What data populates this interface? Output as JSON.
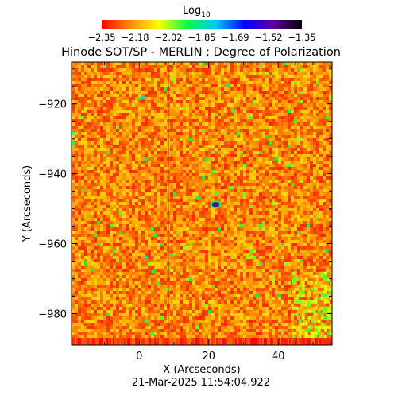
{
  "chart_data": {
    "type": "heatmap",
    "title": "Hinode SOT/SP - MERLIN : Degree of Polarization",
    "colorbar": {
      "label": "Log",
      "label_subscript": "10",
      "ticks": [
        "-2.35",
        "-2.18",
        "-2.02",
        "-1.85",
        "-1.69",
        "-1.52",
        "-1.35"
      ],
      "range": [
        -2.35,
        -1.35
      ],
      "colormap": [
        "#ff0000",
        "#ff8c00",
        "#ffff00",
        "#00ff40",
        "#00c8ff",
        "#0000ff",
        "#6000a0",
        "#000000"
      ]
    },
    "xlabel": "X (Arcseconds)",
    "ylabel": "Y (Arcseconds)",
    "xlim": [
      -19.5,
      55.5
    ],
    "ylim": [
      -989,
      -908
    ],
    "xticks": [
      0,
      20,
      40
    ],
    "yticks": [
      -920,
      -940,
      -960,
      -980
    ],
    "typical_value": -2.2,
    "features": [
      {
        "x": 22.0,
        "y": -948.8,
        "value": -1.5,
        "note": "dark blue spot"
      },
      {
        "x": 1.0,
        "y": -918.0,
        "value": -1.85
      },
      {
        "x": 2.0,
        "y": -964.0,
        "value": -1.85
      },
      {
        "x": 4.0,
        "y": -968.0,
        "value": -1.9
      },
      {
        "x": 17.0,
        "y": -947.0,
        "value": -1.9
      },
      {
        "x": 54.0,
        "y": -962.0,
        "value": -1.9
      },
      {
        "x": 45.0,
        "y": -925.0,
        "value": -1.95
      },
      {
        "x": 27.0,
        "y": -922.0,
        "value": -1.95
      },
      {
        "x": 35.0,
        "y": -966.0,
        "value": -1.95
      }
    ],
    "timestamp": "21-Mar-2025 11:54:04.922"
  }
}
